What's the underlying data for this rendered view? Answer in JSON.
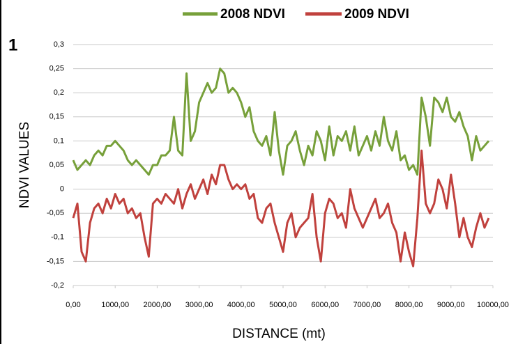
{
  "chart_data": {
    "type": "line",
    "panel_label": "1",
    "x_label": "DISTANCE (mt)",
    "y_label": "NDVI  VALUES",
    "x": [
      0,
      100,
      200,
      300,
      400,
      500,
      600,
      700,
      800,
      900,
      1000,
      1100,
      1200,
      1300,
      1400,
      1500,
      1600,
      1700,
      1800,
      1900,
      2000,
      2100,
      2200,
      2300,
      2400,
      2500,
      2600,
      2700,
      2800,
      2900,
      3000,
      3100,
      3200,
      3300,
      3400,
      3500,
      3600,
      3700,
      3800,
      3900,
      4000,
      4100,
      4200,
      4300,
      4400,
      4500,
      4600,
      4700,
      4800,
      4900,
      5000,
      5100,
      5200,
      5300,
      5400,
      5500,
      5600,
      5700,
      5800,
      5900,
      6000,
      6100,
      6200,
      6300,
      6400,
      6500,
      6600,
      6700,
      6800,
      6900,
      7000,
      7100,
      7200,
      7300,
      7400,
      7500,
      7600,
      7700,
      7800,
      7900,
      8000,
      8100,
      8200,
      8300,
      8400,
      8500,
      8600,
      8700,
      8800,
      8900,
      9000,
      9100,
      9200,
      9300,
      9400,
      9500,
      9600,
      9700,
      9800,
      9900
    ],
    "series": [
      {
        "name": "2008 NDVI",
        "color": "#77a03a",
        "values": [
          0.06,
          0.04,
          0.05,
          0.06,
          0.05,
          0.07,
          0.08,
          0.07,
          0.09,
          0.09,
          0.1,
          0.09,
          0.08,
          0.06,
          0.05,
          0.06,
          0.05,
          0.04,
          0.03,
          0.05,
          0.05,
          0.07,
          0.07,
          0.08,
          0.15,
          0.08,
          0.07,
          0.24,
          0.1,
          0.12,
          0.18,
          0.2,
          0.22,
          0.2,
          0.21,
          0.25,
          0.24,
          0.2,
          0.21,
          0.2,
          0.18,
          0.15,
          0.17,
          0.12,
          0.1,
          0.09,
          0.11,
          0.07,
          0.16,
          0.08,
          0.03,
          0.09,
          0.1,
          0.12,
          0.08,
          0.05,
          0.09,
          0.07,
          0.12,
          0.1,
          0.06,
          0.13,
          0.07,
          0.11,
          0.1,
          0.12,
          0.08,
          0.13,
          0.07,
          0.09,
          0.11,
          0.08,
          0.12,
          0.09,
          0.15,
          0.1,
          0.08,
          0.12,
          0.06,
          0.07,
          0.04,
          0.05,
          0.03,
          0.19,
          0.15,
          0.09,
          0.19,
          0.18,
          0.16,
          0.19,
          0.15,
          0.14,
          0.16,
          0.13,
          0.11,
          0.06,
          0.11,
          0.08,
          0.09,
          0.1
        ]
      },
      {
        "name": "2009 NDVI",
        "color": "#c0413d",
        "values": [
          -0.06,
          -0.03,
          -0.13,
          -0.15,
          -0.07,
          -0.04,
          -0.03,
          -0.05,
          -0.02,
          -0.04,
          -0.01,
          -0.03,
          -0.02,
          -0.05,
          -0.04,
          -0.06,
          -0.05,
          -0.1,
          -0.14,
          -0.03,
          -0.02,
          -0.03,
          -0.01,
          -0.02,
          -0.03,
          0.0,
          -0.04,
          -0.01,
          0.01,
          -0.02,
          0.0,
          0.02,
          -0.01,
          0.03,
          0.01,
          0.05,
          0.05,
          0.02,
          0.0,
          0.01,
          0.0,
          0.01,
          -0.02,
          -0.01,
          -0.06,
          -0.07,
          -0.04,
          -0.03,
          -0.07,
          -0.1,
          -0.13,
          -0.07,
          -0.05,
          -0.1,
          -0.08,
          -0.07,
          -0.06,
          -0.01,
          -0.1,
          -0.15,
          -0.05,
          -0.02,
          -0.03,
          -0.06,
          -0.05,
          -0.08,
          0.0,
          -0.04,
          -0.06,
          -0.08,
          -0.06,
          -0.04,
          -0.02,
          -0.06,
          -0.05,
          -0.03,
          -0.07,
          -0.09,
          -0.15,
          -0.09,
          -0.13,
          -0.16,
          -0.06,
          0.08,
          -0.03,
          -0.05,
          -0.03,
          0.02,
          0.0,
          -0.04,
          0.03,
          -0.03,
          -0.1,
          -0.06,
          -0.1,
          -0.12,
          -0.08,
          -0.05,
          -0.08,
          -0.06
        ]
      }
    ],
    "xlim": [
      0,
      10000
    ],
    "xticks": [
      {
        "value": 0,
        "label": "0,00"
      },
      {
        "value": 1000,
        "label": "1000,00"
      },
      {
        "value": 2000,
        "label": "2000,00"
      },
      {
        "value": 3000,
        "label": "3000,00"
      },
      {
        "value": 4000,
        "label": "4000,00"
      },
      {
        "value": 5000,
        "label": "5000,00"
      },
      {
        "value": 6000,
        "label": "6000,00"
      },
      {
        "value": 7000,
        "label": "7000,00"
      },
      {
        "value": 8000,
        "label": "8000,00"
      },
      {
        "value": 9000,
        "label": "9000,00"
      },
      {
        "value": 10000,
        "label": "10000,00"
      }
    ],
    "ylim": [
      -0.2,
      0.3
    ],
    "yticks": [
      {
        "value": -0.2,
        "label": "-0,2"
      },
      {
        "value": -0.15,
        "label": "-0,15"
      },
      {
        "value": -0.1,
        "label": "-0,1"
      },
      {
        "value": -0.05,
        "label": "-0,05"
      },
      0,
      {
        "value": 0.05,
        "label": "0,05"
      },
      {
        "value": 0.1,
        "label": "0,1"
      },
      {
        "value": 0.15,
        "label": "0,15"
      },
      {
        "value": 0.2,
        "label": "0,2"
      },
      {
        "value": 0.25,
        "label": "0,25"
      },
      {
        "value": 0.3,
        "label": "0,3"
      }
    ],
    "grid": true
  }
}
